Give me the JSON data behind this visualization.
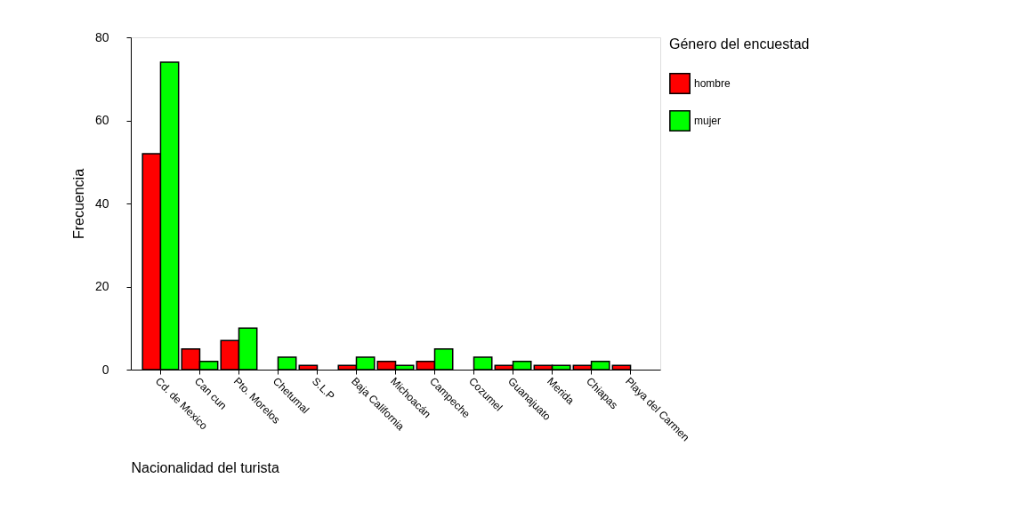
{
  "chart_data": {
    "type": "bar",
    "xlabel": "Nacionalidad del turista",
    "ylabel": "Frecuencia",
    "legend_title": "Género del encuestad",
    "categories": [
      "Cd. de Mexico",
      "Can cun",
      "Pto. Morelos",
      "Chetumal",
      "S.L.P",
      "Baja California",
      "Michoacán",
      "Campeche",
      "Cozumel",
      "Guanajuato",
      "Merida",
      "Chiapas",
      "Playa del Carmen"
    ],
    "series": [
      {
        "name": "hombre",
        "color": "#ff0000",
        "values": [
          52,
          5,
          7,
          0,
          1,
          1,
          2,
          2,
          0,
          1,
          1,
          1,
          1
        ]
      },
      {
        "name": "mujer",
        "color": "#00ff00",
        "values": [
          74,
          2,
          10,
          3,
          0,
          3,
          1,
          5,
          3,
          2,
          1,
          2,
          0
        ]
      }
    ],
    "ylim": [
      0,
      80
    ],
    "yticks": [
      0,
      20,
      40,
      60,
      80
    ],
    "grid": false,
    "legend": "right"
  }
}
